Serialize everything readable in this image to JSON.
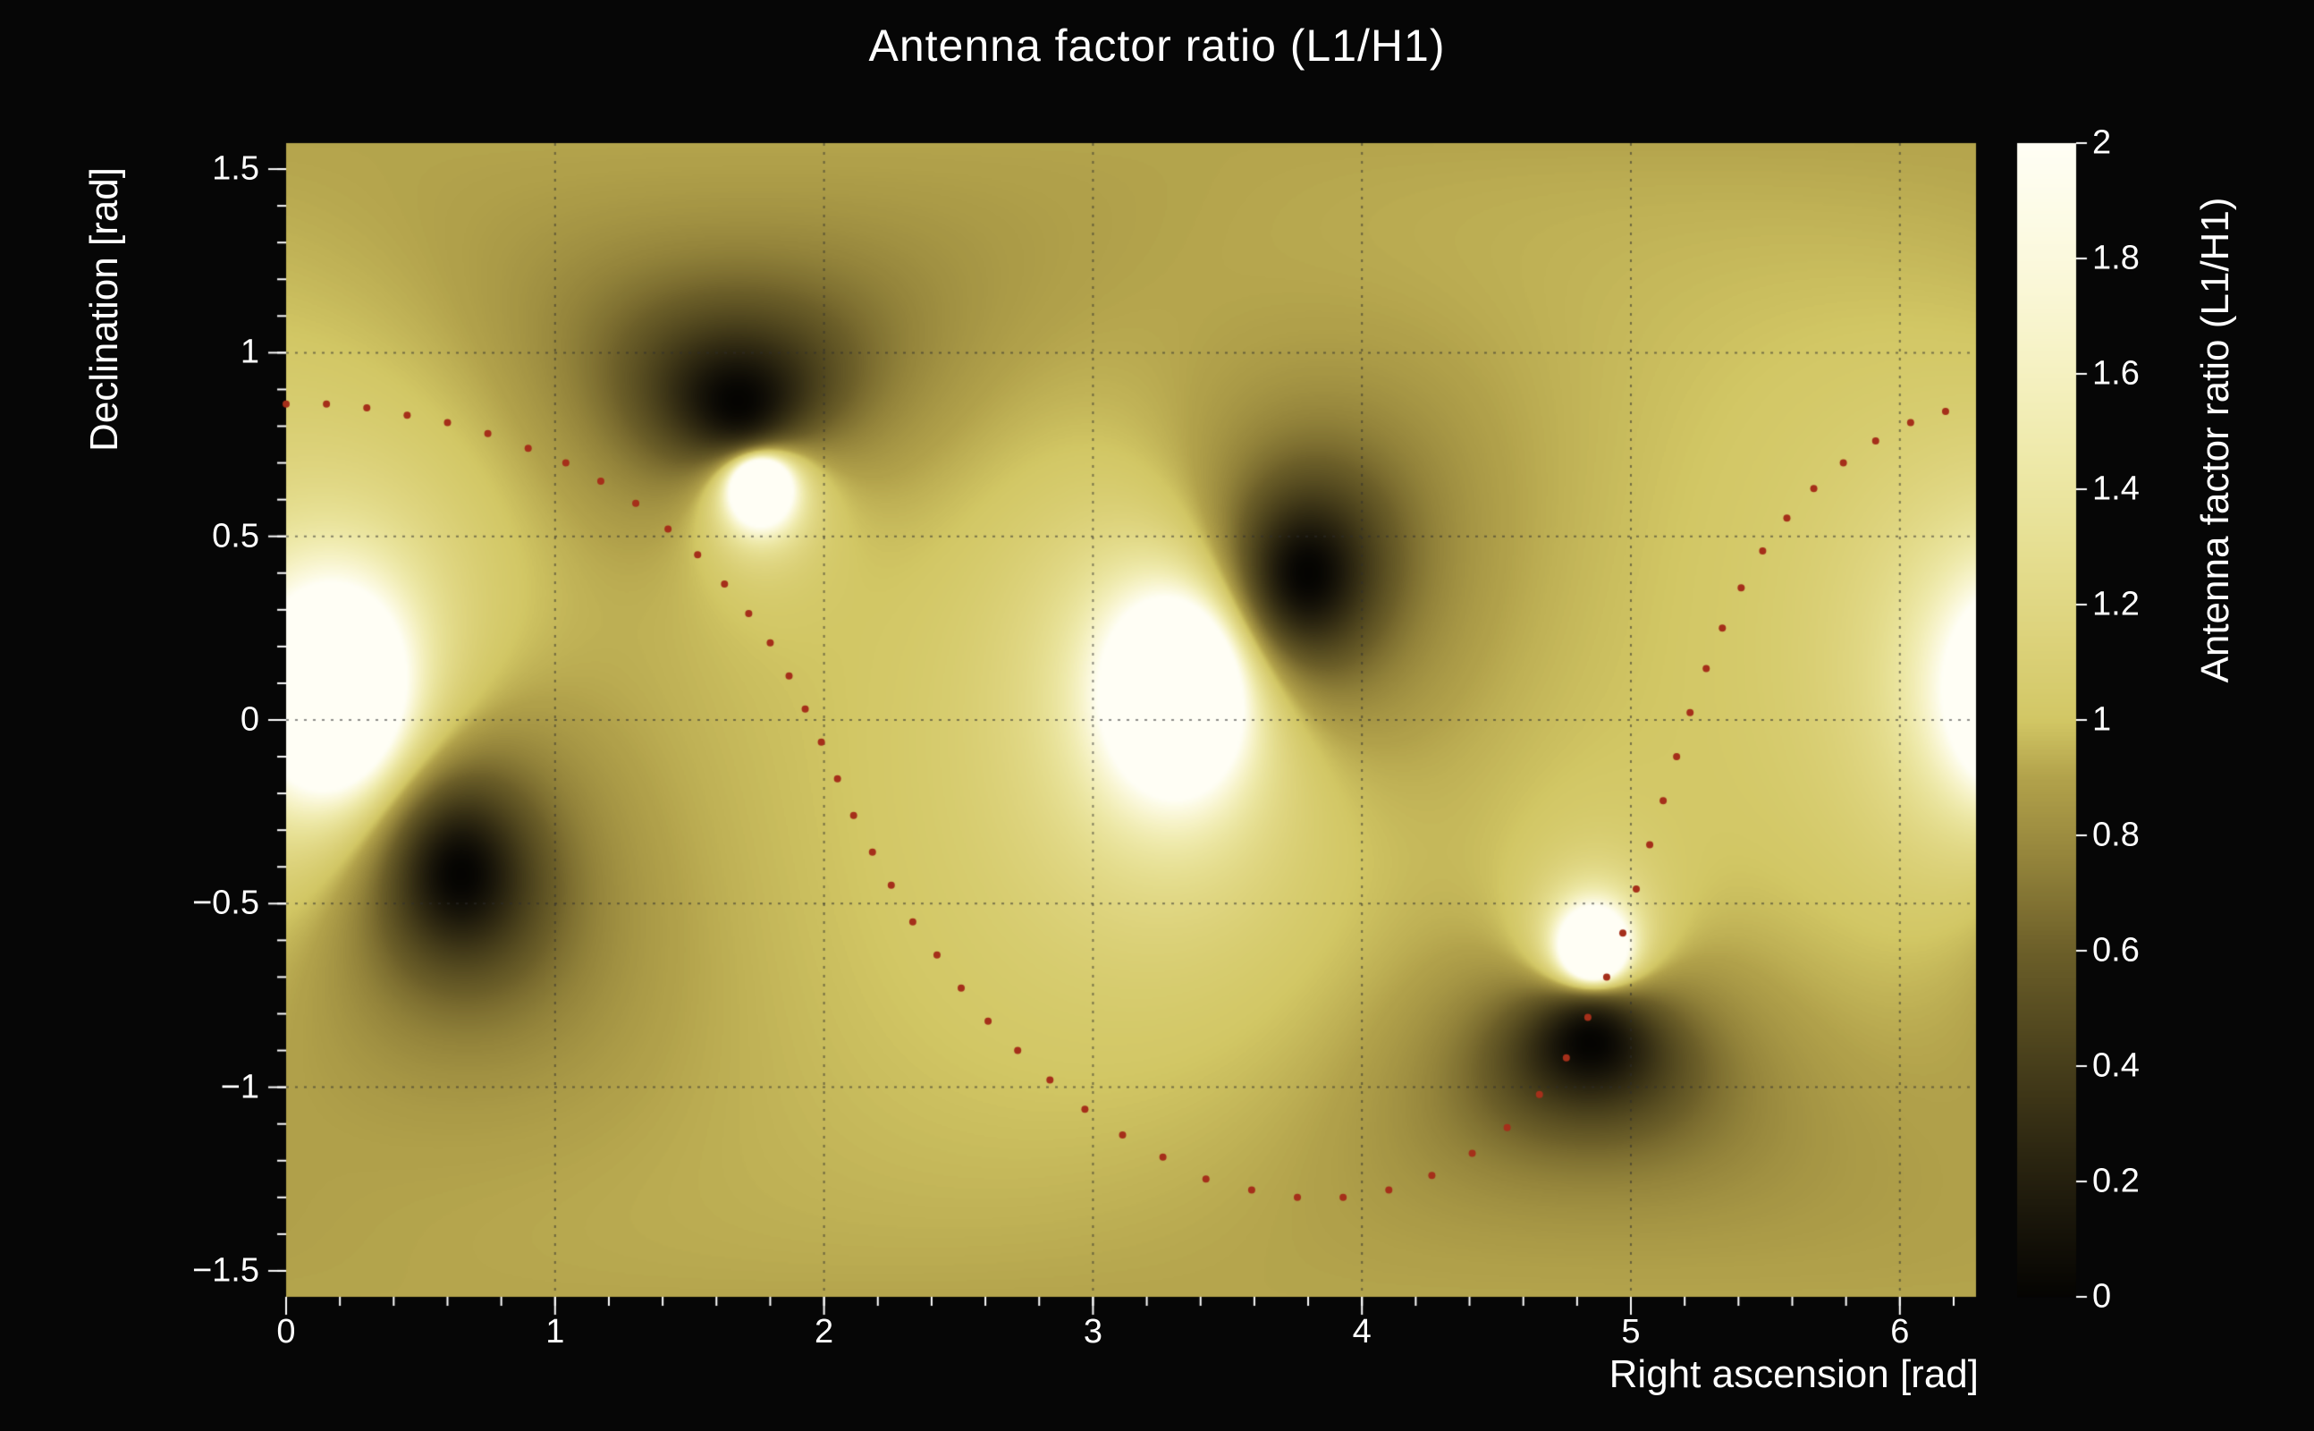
{
  "figure": {
    "background": "#060606",
    "text_color": "#ffffff"
  },
  "chart_data": {
    "type": "heatmap",
    "title": "Antenna factor ratio (L1/H1)",
    "xlabel": "Right ascension [rad]",
    "ylabel": "Declination [rad]",
    "colorbar_label": "Antenna factor ratio (L1/H1)",
    "x_range": [
      0,
      6.2832
    ],
    "y_range": [
      -1.5708,
      1.5708
    ],
    "z_range": [
      0,
      2
    ],
    "grid": {
      "on": true,
      "x_lines": [
        1,
        2,
        3,
        4,
        5,
        6
      ],
      "y_lines": [
        -1,
        -0.5,
        0,
        0.5,
        1
      ]
    },
    "x_ticks": [
      {
        "v": 0,
        "label": "0"
      },
      {
        "v": 1,
        "label": "1"
      },
      {
        "v": 2,
        "label": "2"
      },
      {
        "v": 3,
        "label": "3"
      },
      {
        "v": 4,
        "label": "4"
      },
      {
        "v": 5,
        "label": "5"
      },
      {
        "v": 6,
        "label": "6"
      }
    ],
    "y_ticks": [
      {
        "v": -1.5,
        "label": "−1.5"
      },
      {
        "v": -1,
        "label": "−1"
      },
      {
        "v": -0.5,
        "label": "−0.5"
      },
      {
        "v": 0,
        "label": "0"
      },
      {
        "v": 0.5,
        "label": "0.5"
      },
      {
        "v": 1,
        "label": "1"
      },
      {
        "v": 1.5,
        "label": "1.5"
      }
    ],
    "colorbar_ticks": [
      {
        "v": 0,
        "label": "0"
      },
      {
        "v": 0.2,
        "label": "0.2"
      },
      {
        "v": 0.4,
        "label": "0.4"
      },
      {
        "v": 0.6,
        "label": "0.6"
      },
      {
        "v": 0.8,
        "label": "0.8"
      },
      {
        "v": 1,
        "label": "1"
      },
      {
        "v": 1.2,
        "label": "1.2"
      },
      {
        "v": 1.4,
        "label": "1.4"
      },
      {
        "v": 1.6,
        "label": "1.6"
      },
      {
        "v": 1.8,
        "label": "1.8"
      },
      {
        "v": 2,
        "label": "2"
      }
    ],
    "field": {
      "base": 1.0,
      "dark_nulls": [
        {
          "ra": 1.68,
          "dec": 0.87,
          "w": 0.28
        },
        {
          "ra": 3.8,
          "dec": 0.4,
          "w": 0.3
        },
        {
          "ra": 0.65,
          "dec": -0.42,
          "w": 0.3
        },
        {
          "ra": 4.85,
          "dec": -0.88,
          "w": 0.25
        }
      ],
      "bright_peaks": [
        {
          "ra": 0.18,
          "dec": 0.07,
          "w": 0.35
        },
        {
          "ra": 1.76,
          "dec": 0.64,
          "w": 0.17
        },
        {
          "ra": 3.32,
          "dec": 0.08,
          "w": 0.35
        },
        {
          "ra": 4.86,
          "dec": -0.63,
          "w": 0.17
        }
      ]
    },
    "colormap": [
      [
        0.0,
        "#050402"
      ],
      [
        0.15,
        "#1c180b"
      ],
      [
        0.3,
        "#352e14"
      ],
      [
        0.45,
        "#50461e"
      ],
      [
        0.6,
        "#6c5f29"
      ],
      [
        0.75,
        "#92823a"
      ],
      [
        0.9,
        "#b2a24b"
      ],
      [
        1.0,
        "#d2c765"
      ],
      [
        1.15,
        "#ddd37c"
      ],
      [
        1.3,
        "#e6df92"
      ],
      [
        1.45,
        "#eee9a9"
      ],
      [
        1.6,
        "#f5f1c1"
      ],
      [
        1.75,
        "#faf7d7"
      ],
      [
        1.9,
        "#fdfce9"
      ],
      [
        2.0,
        "#fffef5"
      ]
    ],
    "overlay_curve": {
      "name": "source-track",
      "color": "#a52f1a",
      "dot_radius": 4,
      "points": [
        [
          0.0,
          0.86
        ],
        [
          0.15,
          0.86
        ],
        [
          0.3,
          0.85
        ],
        [
          0.45,
          0.83
        ],
        [
          0.6,
          0.81
        ],
        [
          0.75,
          0.78
        ],
        [
          0.9,
          0.74
        ],
        [
          1.04,
          0.7
        ],
        [
          1.17,
          0.65
        ],
        [
          1.3,
          0.59
        ],
        [
          1.42,
          0.52
        ],
        [
          1.53,
          0.45
        ],
        [
          1.63,
          0.37
        ],
        [
          1.72,
          0.29
        ],
        [
          1.8,
          0.21
        ],
        [
          1.87,
          0.12
        ],
        [
          1.93,
          0.03
        ],
        [
          1.99,
          -0.06
        ],
        [
          2.05,
          -0.16
        ],
        [
          2.11,
          -0.26
        ],
        [
          2.18,
          -0.36
        ],
        [
          2.25,
          -0.45
        ],
        [
          2.33,
          -0.55
        ],
        [
          2.42,
          -0.64
        ],
        [
          2.51,
          -0.73
        ],
        [
          2.61,
          -0.82
        ],
        [
          2.72,
          -0.9
        ],
        [
          2.84,
          -0.98
        ],
        [
          2.97,
          -1.06
        ],
        [
          3.11,
          -1.13
        ],
        [
          3.26,
          -1.19
        ],
        [
          3.42,
          -1.25
        ],
        [
          3.59,
          -1.28
        ],
        [
          3.76,
          -1.3
        ],
        [
          3.93,
          -1.3
        ],
        [
          4.1,
          -1.28
        ],
        [
          4.26,
          -1.24
        ],
        [
          4.41,
          -1.18
        ],
        [
          4.54,
          -1.11
        ],
        [
          4.66,
          -1.02
        ],
        [
          4.76,
          -0.92
        ],
        [
          4.84,
          -0.81
        ],
        [
          4.91,
          -0.7
        ],
        [
          4.97,
          -0.58
        ],
        [
          5.02,
          -0.46
        ],
        [
          5.07,
          -0.34
        ],
        [
          5.12,
          -0.22
        ],
        [
          5.17,
          -0.1
        ],
        [
          5.22,
          0.02
        ],
        [
          5.28,
          0.14
        ],
        [
          5.34,
          0.25
        ],
        [
          5.41,
          0.36
        ],
        [
          5.49,
          0.46
        ],
        [
          5.58,
          0.55
        ],
        [
          5.68,
          0.63
        ],
        [
          5.79,
          0.7
        ],
        [
          5.91,
          0.76
        ],
        [
          6.04,
          0.81
        ],
        [
          6.17,
          0.84
        ],
        [
          6.3,
          0.86
        ]
      ]
    },
    "styles": {
      "grid_color": "rgba(45,45,45,0.55)",
      "tick_color": "#ffffff"
    }
  }
}
